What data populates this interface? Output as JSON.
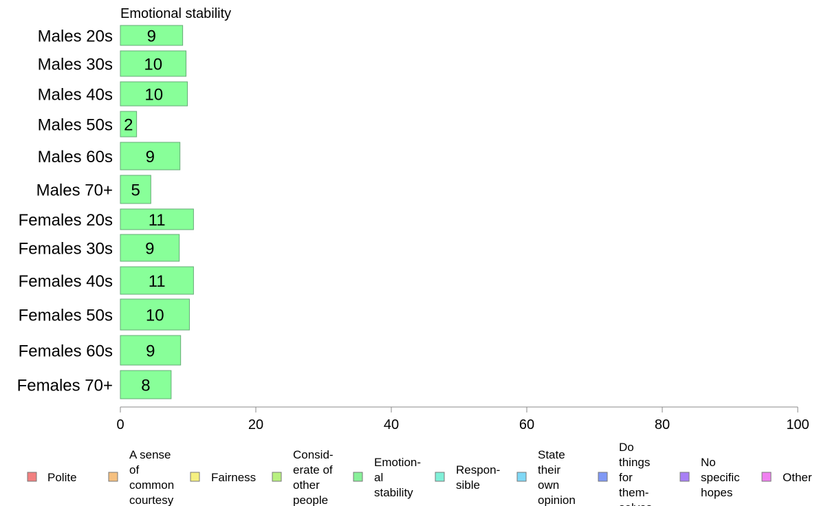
{
  "chart_data": {
    "type": "bar",
    "orientation": "horizontal",
    "title": "Emotional stability",
    "categories": [
      "Males 20s",
      "Males 30s",
      "Males 40s",
      "Males 50s",
      "Males 60s",
      "Males 70+",
      "Females 20s",
      "Females 30s",
      "Females 40s",
      "Females 50s",
      "Females 60s",
      "Females 70+"
    ],
    "series": [
      {
        "name": "Emotional stability",
        "values": [
          9,
          10,
          10,
          2,
          9,
          5,
          11,
          9,
          11,
          10,
          9,
          8
        ]
      }
    ],
    "display_values": [
      9.2,
      9.7,
      9.9,
      2.4,
      8.8,
      4.5,
      10.8,
      8.7,
      10.8,
      10.2,
      8.9,
      7.5
    ],
    "xlim": [
      0,
      100
    ],
    "xticks": [
      0,
      20,
      40,
      60,
      80,
      100
    ],
    "xlabel": "",
    "ylabel": "",
    "grid": false,
    "legend_position": "bottom",
    "bar_color": "#88ff99",
    "bar_edge_color": "#66aa77",
    "legend": [
      {
        "lines": [
          "Polite"
        ],
        "color": "#f28080"
      },
      {
        "lines": [
          "A sense",
          "of",
          "common",
          "courtesy"
        ],
        "color": "#f5c080"
      },
      {
        "lines": [
          "Fairness"
        ],
        "color": "#f5f080"
      },
      {
        "lines": [
          "Consid-",
          "erate of",
          "other",
          "people"
        ],
        "color": "#b8f080"
      },
      {
        "lines": [
          "Emotion-",
          "al",
          "stability"
        ],
        "color": "#88f099"
      },
      {
        "lines": [
          "Respon-",
          "sible"
        ],
        "color": "#80f0d8"
      },
      {
        "lines": [
          "State",
          "their",
          "own",
          "opinion"
        ],
        "color": "#80d8f5"
      },
      {
        "lines": [
          "Do",
          "things",
          "for",
          "them-",
          "selves"
        ],
        "color": "#8099f5"
      },
      {
        "lines": [
          "No",
          "specific",
          "hopes"
        ],
        "color": "#a880f5"
      },
      {
        "lines": [
          "Other"
        ],
        "color": "#f080f0"
      }
    ]
  }
}
